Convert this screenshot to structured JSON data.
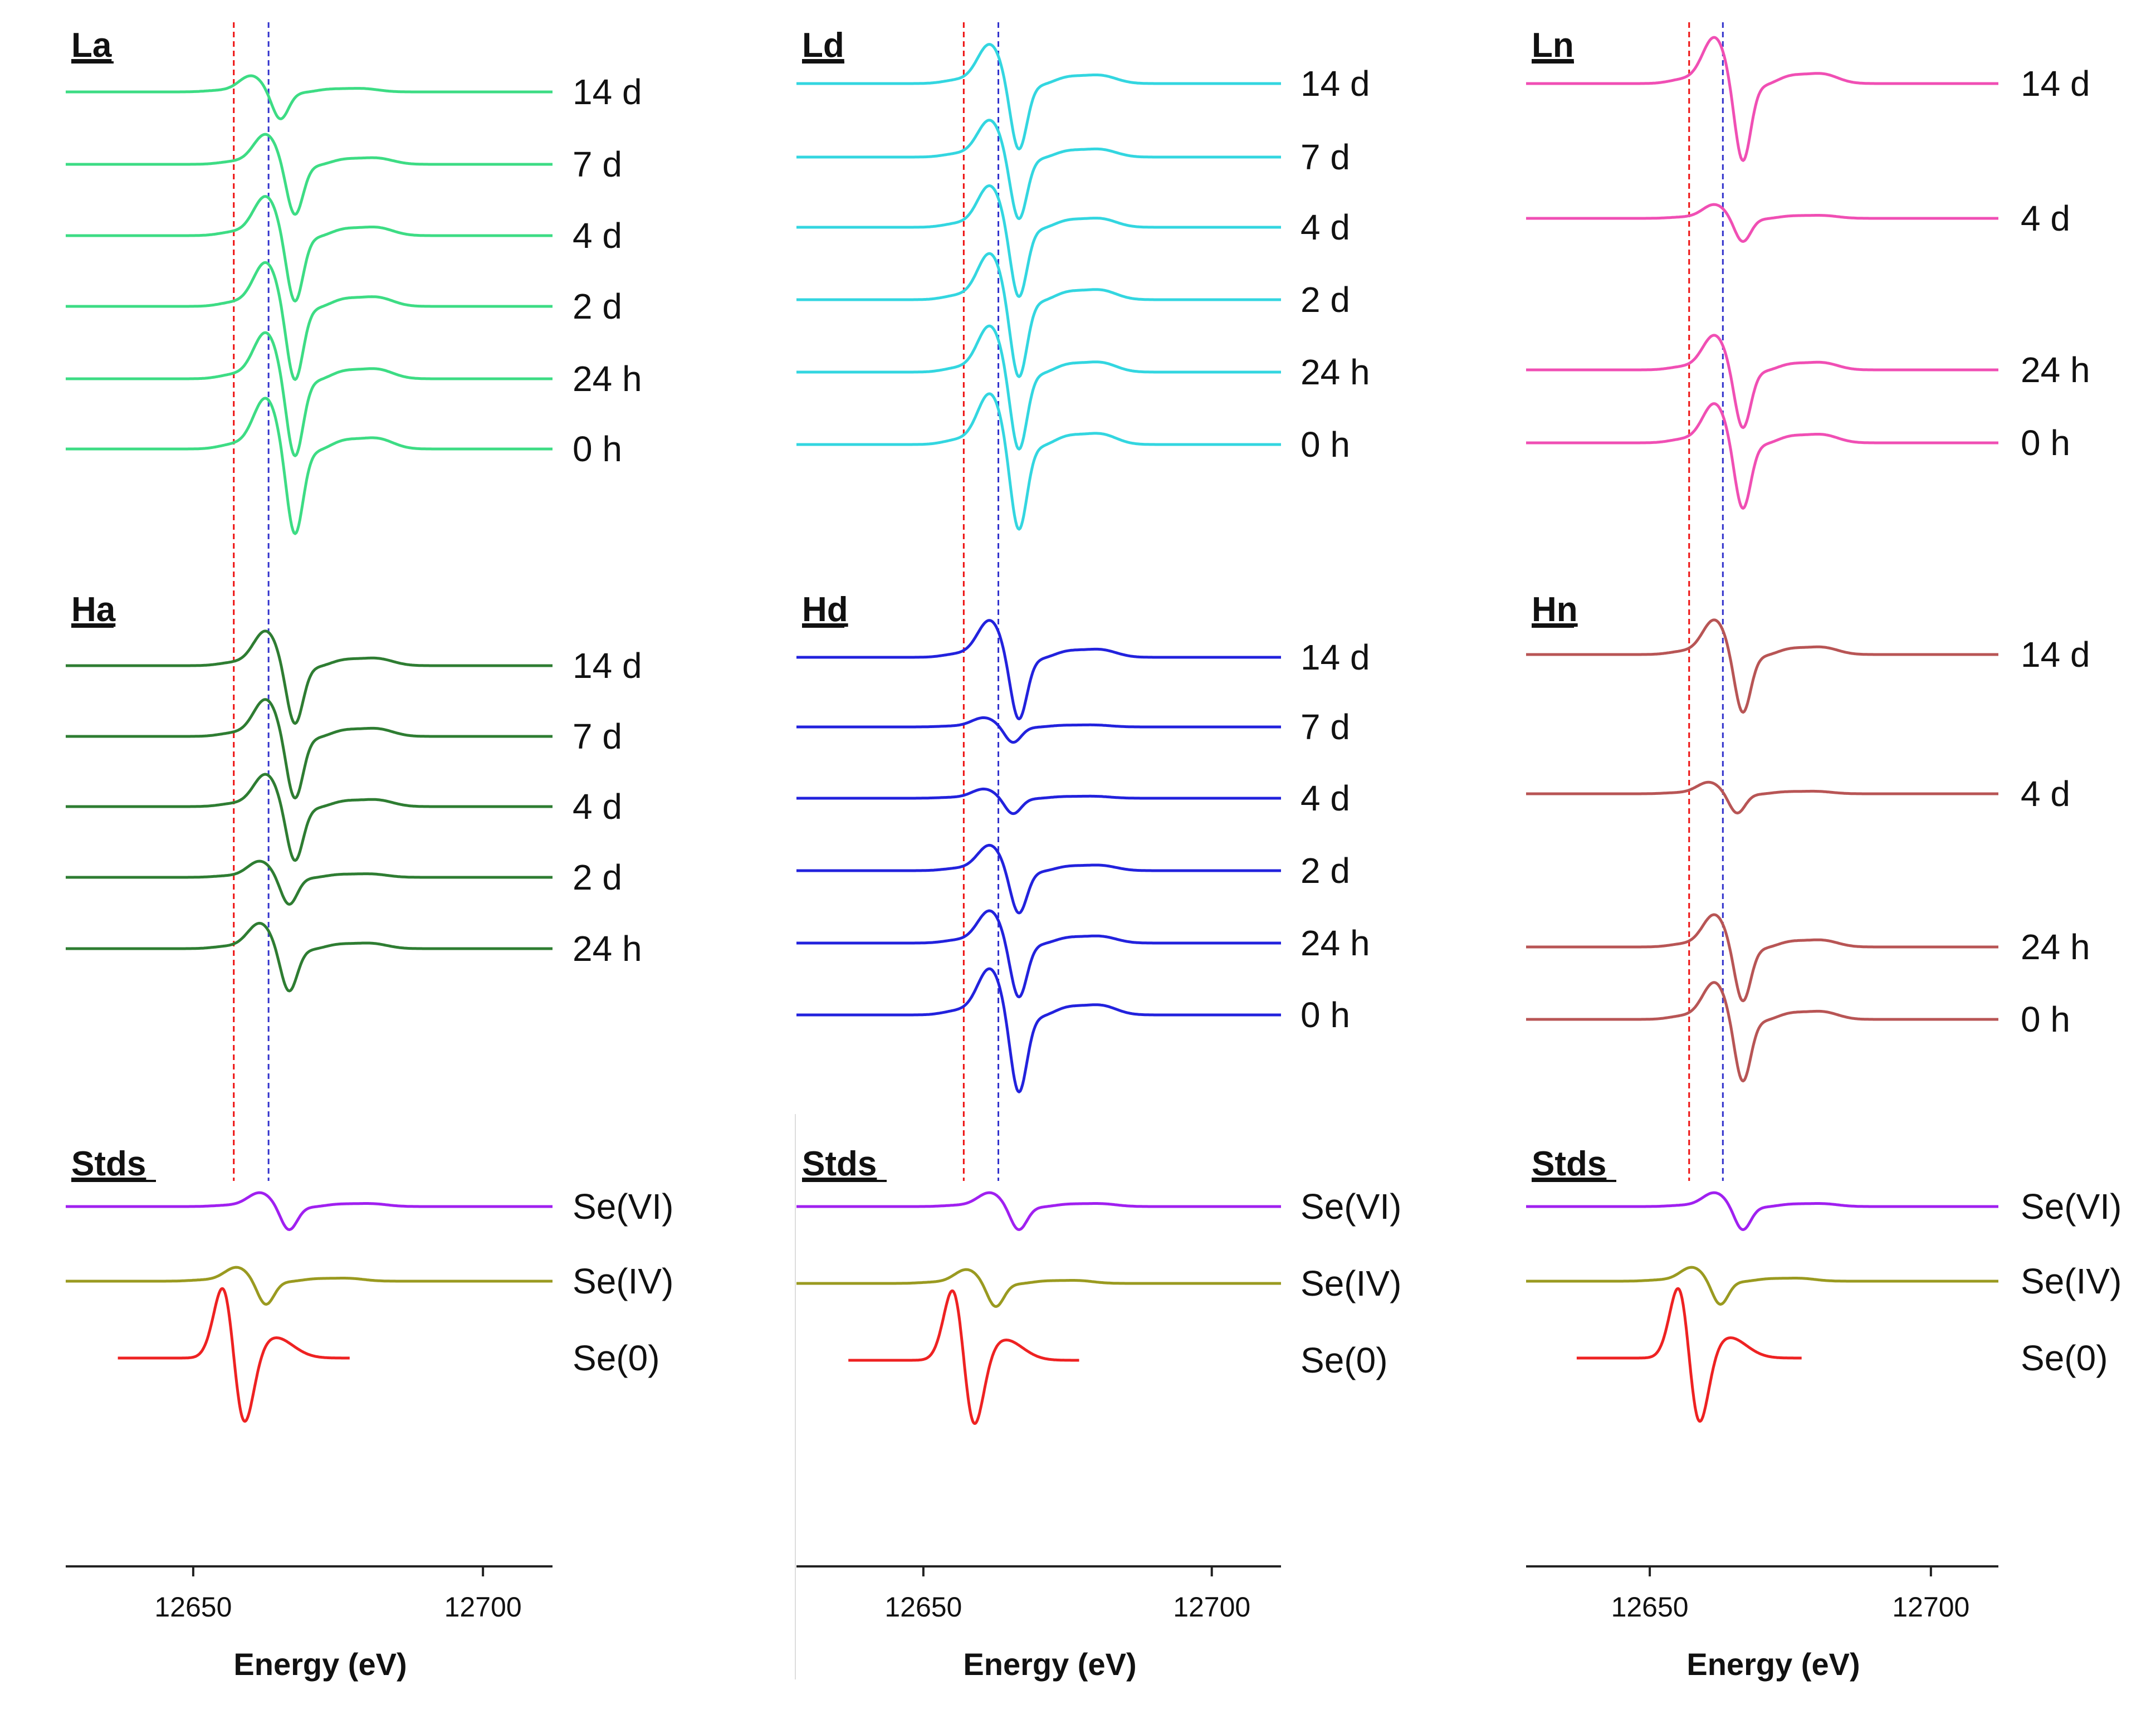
{
  "chart_data": {
    "type": "line",
    "description_kind": "stacked XANES derivative spectra",
    "colors": {
      "La": "#3ddc84",
      "Ha": "#2e7d32",
      "Ld": "#33d6e0",
      "Hd": "#2222dd",
      "Ln": "#f04fb4",
      "Hn": "#b85555",
      "SeVI": "#a020f0",
      "SeIV": "#9a9a20",
      "Se0": "#ee2222",
      "ref_red": "#ee1111",
      "ref_blue": "#3333cc"
    },
    "reference_lines_eV": {
      "red": 12657,
      "blue": 12663
    },
    "panels": [
      {
        "xlabel": "Energy (eV)",
        "xlim": [
          12628,
          12712
        ],
        "xticks": [
          12650,
          12700
        ],
        "groups": [
          {
            "name": "La",
            "color_key": "La",
            "traces": [
              {
                "label": "14 d",
                "peak": 12661.5,
                "amp": 0.35
              },
              {
                "label": "7 d",
                "peak": 12664,
                "amp": 0.65
              },
              {
                "label": "4 d",
                "peak": 12664,
                "amp": 0.85
              },
              {
                "label": "2 d",
                "peak": 12664,
                "amp": 0.95
              },
              {
                "label": "24 h",
                "peak": 12664,
                "amp": 1.0
              },
              {
                "label": "0 h",
                "peak": 12664,
                "amp": 1.1
              }
            ]
          },
          {
            "name": "Ha",
            "color_key": "Ha",
            "traces": [
              {
                "label": "14 d",
                "peak": 12664,
                "amp": 0.75
              },
              {
                "label": "7 d",
                "peak": 12664,
                "amp": 0.8
              },
              {
                "label": "4 d",
                "peak": 12664,
                "amp": 0.7
              },
              {
                "label": "2 d",
                "peak": 12663,
                "amp": 0.35
              },
              {
                "label": "24 h",
                "peak": 12663,
                "amp": 0.55
              }
            ]
          },
          {
            "name": "Stds",
            "standards": true,
            "traces": [
              {
                "label": "Se(VI)",
                "color_key": "SeVI",
                "peak": 12663,
                "amp": 0.3,
                "shape": "white"
              },
              {
                "label": "Se(IV)",
                "color_key": "SeIV",
                "peak": 12659,
                "amp": 0.3,
                "shape": "white"
              },
              {
                "label": "Se(0)",
                "color_key": "Se0",
                "peak": 12657,
                "amp": 1.0,
                "shape": "edge"
              }
            ]
          }
        ]
      },
      {
        "xlabel": "Energy (eV)",
        "xlim": [
          12628,
          12712
        ],
        "xticks": [
          12650,
          12700
        ],
        "groups": [
          {
            "name": "Ld",
            "color_key": "Ld",
            "traces": [
              {
                "label": "14 d",
                "peak": 12663,
                "amp": 0.85
              },
              {
                "label": "7 d",
                "peak": 12663,
                "amp": 0.8
              },
              {
                "label": "4 d",
                "peak": 12663,
                "amp": 0.9
              },
              {
                "label": "2 d",
                "peak": 12663,
                "amp": 1.0
              },
              {
                "label": "24 h",
                "peak": 12663,
                "amp": 1.0
              },
              {
                "label": "0 h",
                "peak": 12663,
                "amp": 1.1
              }
            ]
          },
          {
            "name": "Hd",
            "color_key": "Hd",
            "traces": [
              {
                "label": "14 d",
                "peak": 12663,
                "amp": 0.8
              },
              {
                "label": "7 d",
                "peak": 12662,
                "amp": 0.2
              },
              {
                "label": "4 d",
                "peak": 12662,
                "amp": 0.2
              },
              {
                "label": "2 d",
                "peak": 12663,
                "amp": 0.55
              },
              {
                "label": "24 h",
                "peak": 12663,
                "amp": 0.7
              },
              {
                "label": "0 h",
                "peak": 12663,
                "amp": 1.0
              }
            ]
          },
          {
            "name": "Stds",
            "standards": true,
            "traces": [
              {
                "label": "Se(VI)",
                "color_key": "SeVI",
                "peak": 12663,
                "amp": 0.3,
                "shape": "white"
              },
              {
                "label": "Se(IV)",
                "color_key": "SeIV",
                "peak": 12659,
                "amp": 0.3,
                "shape": "white"
              },
              {
                "label": "Se(0)",
                "color_key": "Se0",
                "peak": 12657,
                "amp": 1.0,
                "shape": "edge"
              }
            ]
          }
        ]
      },
      {
        "xlabel": "Energy (eV)",
        "xlim": [
          12628,
          12712
        ],
        "xticks": [
          12650,
          12700
        ],
        "groups": [
          {
            "name": "Ln",
            "color_key": "Ln",
            "traces": [
              {
                "label": "14 d",
                "peak": 12663,
                "amp": 1.0
              },
              {
                "label": "4 d",
                "peak": 12663,
                "amp": 0.3
              },
              {
                "label": "24 h",
                "peak": 12663,
                "amp": 0.75
              },
              {
                "label": "0 h",
                "peak": 12663,
                "amp": 0.85
              }
            ]
          },
          {
            "name": "Hn",
            "color_key": "Hn",
            "traces": [
              {
                "label": "14 d",
                "peak": 12663,
                "amp": 0.75
              },
              {
                "label": "4 d",
                "peak": 12662,
                "amp": 0.25
              },
              {
                "label": "24 h",
                "peak": 12663,
                "amp": 0.7
              },
              {
                "label": "0 h",
                "peak": 12663,
                "amp": 0.8
              }
            ]
          },
          {
            "name": "Stds",
            "standards": true,
            "traces": [
              {
                "label": "Se(VI)",
                "color_key": "SeVI",
                "peak": 12663,
                "amp": 0.3,
                "shape": "white"
              },
              {
                "label": "Se(IV)",
                "color_key": "SeIV",
                "peak": 12659,
                "amp": 0.3,
                "shape": "white"
              },
              {
                "label": "Se(0)",
                "color_key": "Se0",
                "peak": 12657,
                "amp": 1.0,
                "shape": "edge"
              }
            ]
          }
        ]
      }
    ]
  }
}
